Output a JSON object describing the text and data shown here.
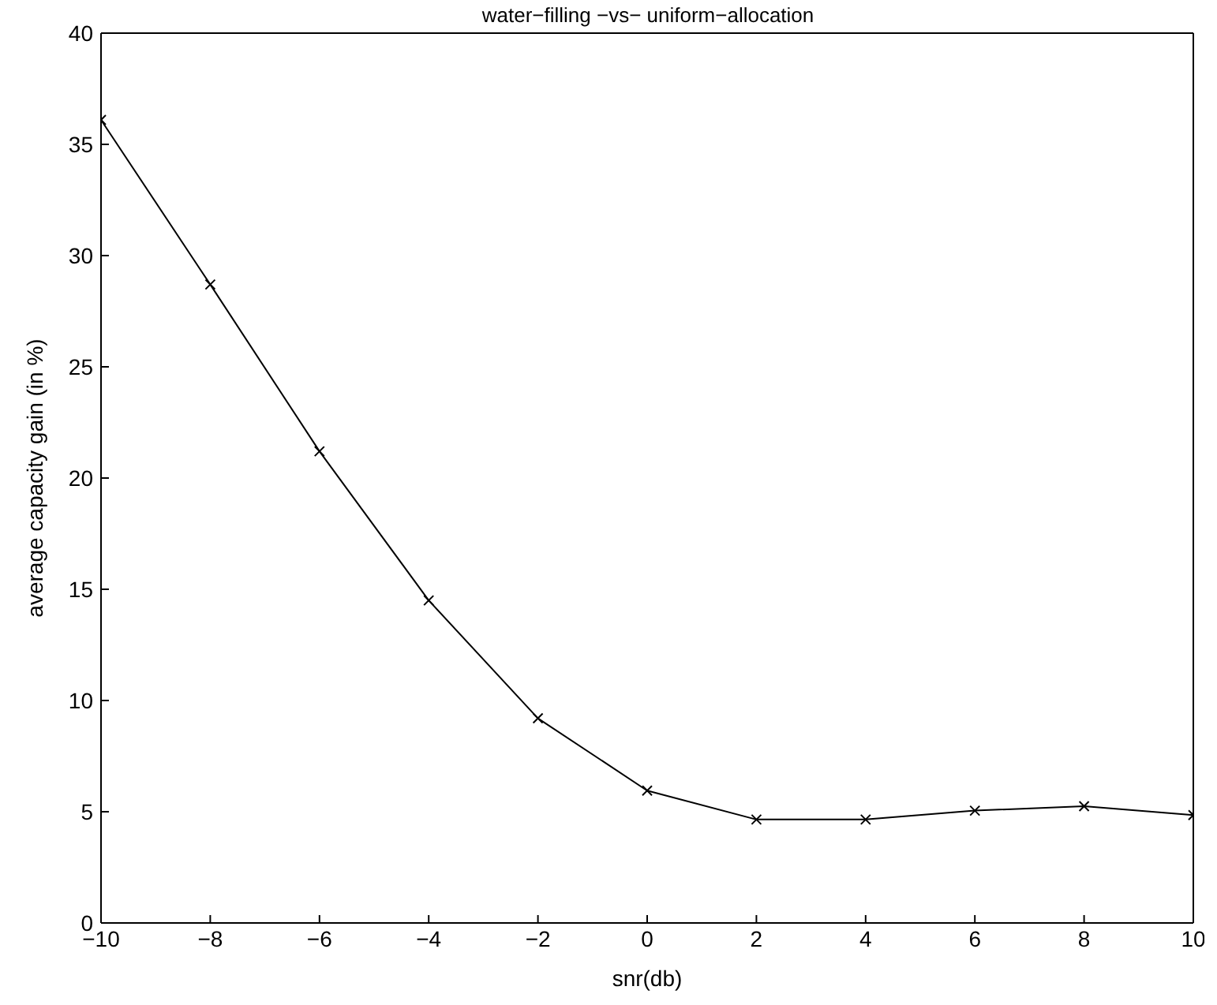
{
  "chart_data": {
    "type": "line",
    "title": "water−filling −vs− uniform−allocation",
    "xlabel": "snr(db)",
    "ylabel": "average capacity gain (in %)",
    "x": [
      -10,
      -8,
      -6,
      -4,
      -2,
      0,
      2,
      4,
      6,
      8,
      10
    ],
    "series": [
      {
        "color": "#000000",
        "values": [
          36.1,
          28.7,
          21.2,
          14.5,
          9.2,
          5.95,
          4.65,
          4.65,
          5.05,
          5.25,
          4.85
        ]
      }
    ],
    "xlim": [
      -10,
      10
    ],
    "xticks": [
      -10,
      -8,
      -6,
      -4,
      -2,
      0,
      2,
      4,
      6,
      8,
      10
    ],
    "ylim": [
      0,
      40
    ],
    "yticks": [
      0,
      5,
      10,
      15,
      20,
      25,
      30,
      35,
      40
    ],
    "grid": false,
    "legend": false,
    "marker": "cross",
    "line_style": "solid"
  }
}
